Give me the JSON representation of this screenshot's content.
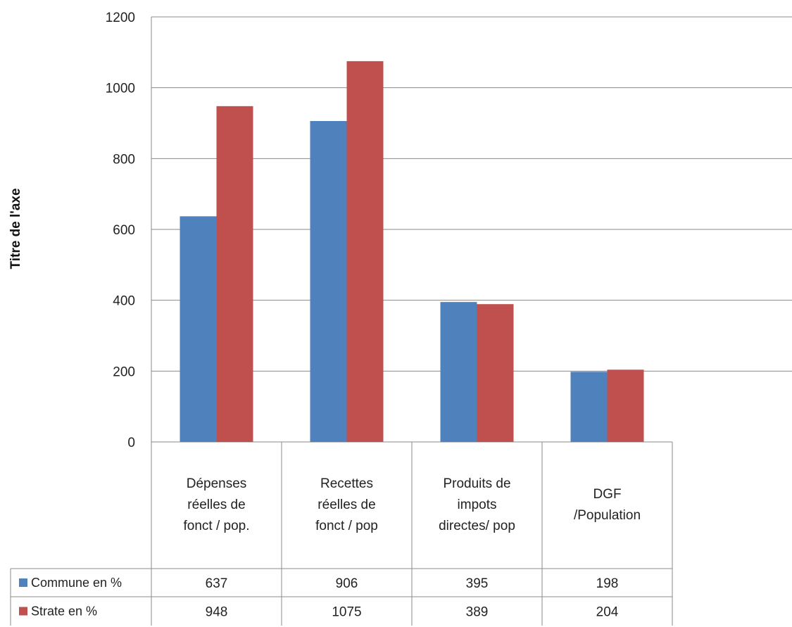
{
  "chart_data": {
    "type": "bar",
    "title": "",
    "xlabel": "",
    "ylabel": "Titre de l'axe",
    "ylim": [
      0,
      1200
    ],
    "yticks": [
      0,
      200,
      400,
      600,
      800,
      1000,
      1200
    ],
    "grid": true,
    "legend": "data-table",
    "categories": [
      [
        "Dépenses",
        "réelles de",
        "fonct / pop."
      ],
      [
        "Recettes",
        "réelles de",
        "fonct / pop"
      ],
      [
        "Produits de",
        "impots",
        "directes/ pop"
      ],
      [
        "DGF",
        "/Population"
      ]
    ],
    "series": [
      {
        "name": "Commune en %",
        "values": [
          637,
          906,
          395,
          198
        ],
        "color": "#4f81bd"
      },
      {
        "name": "Strate en %",
        "values": [
          948,
          1075,
          389,
          204
        ],
        "color": "#c0504d"
      }
    ]
  }
}
